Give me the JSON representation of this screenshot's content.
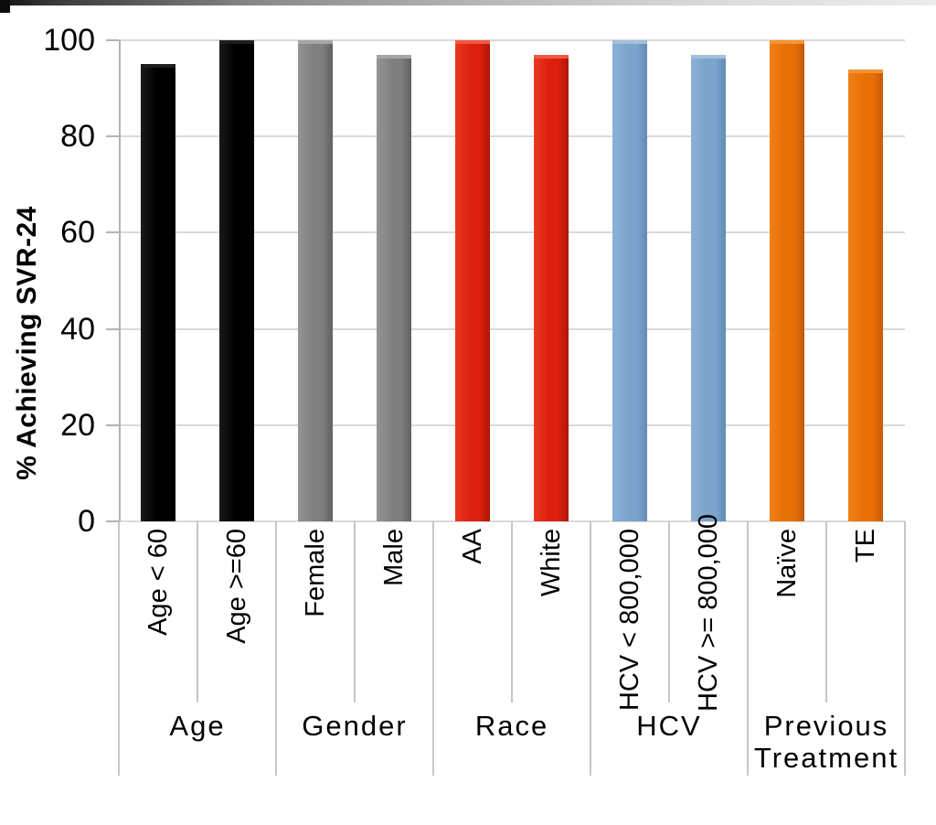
{
  "chart_data": {
    "type": "bar",
    "title": "",
    "ylabel": "% Achieving SVR-24",
    "xlabel": "",
    "ylim": [
      0,
      100
    ],
    "yticks": [
      0,
      20,
      40,
      60,
      80,
      100
    ],
    "grid": true,
    "legend": "none",
    "groups": [
      {
        "label": "Age",
        "color_key": "black",
        "bars": [
          {
            "category": "Age < 60",
            "value": 95
          },
          {
            "category": "Age >=60",
            "value": 100
          }
        ]
      },
      {
        "label": "Gender",
        "color_key": "gray",
        "bars": [
          {
            "category": "Female",
            "value": 100
          },
          {
            "category": "Male",
            "value": 97
          }
        ]
      },
      {
        "label": "Race",
        "color_key": "red",
        "bars": [
          {
            "category": "AA",
            "value": 100
          },
          {
            "category": "White",
            "value": 97
          }
        ]
      },
      {
        "label": "HCV",
        "color_key": "blue",
        "bars": [
          {
            "category": "HCV < 800,000",
            "value": 100
          },
          {
            "category": "HCV >= 800,000",
            "value": 97
          }
        ]
      },
      {
        "label": "Previous Treatment",
        "color_key": "orange",
        "bars": [
          {
            "category": "Naïve",
            "value": 100
          },
          {
            "category": "TE",
            "value": 94
          }
        ]
      }
    ],
    "colors": {
      "black": {
        "light": "#1a1a1a",
        "base": "#000000",
        "dark": "#000000",
        "cap": "#1f1f1f"
      },
      "gray": {
        "light": "#949494",
        "base": "#7f7f7f",
        "dark": "#616161",
        "cap": "#a6a6a6"
      },
      "red": {
        "light": "#ea3a21",
        "base": "#dc1f0e",
        "dark": "#ad1606",
        "cap": "#ef5942"
      },
      "blue": {
        "light": "#8bb0d4",
        "base": "#7ba4cc",
        "dark": "#638bb5",
        "cap": "#a2c0dc"
      },
      "orange": {
        "light": "#f08018",
        "base": "#e76f06",
        "dark": "#c25c03",
        "cap": "#f29433"
      }
    },
    "axis_colors": {
      "gridline": "#d9d9d9",
      "axis": "#b3b3b3",
      "divider": "#c6c6c6",
      "text": "#000000"
    }
  }
}
